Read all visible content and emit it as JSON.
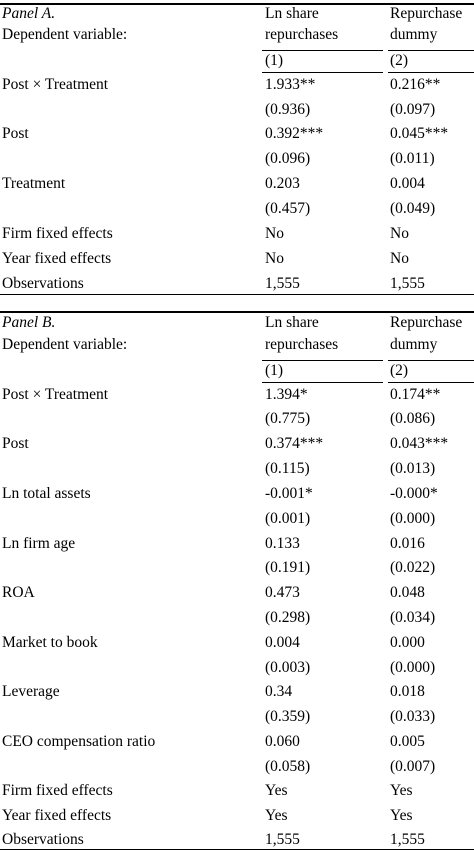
{
  "panelA": {
    "title": "Panel A.",
    "depvar": "Dependent variable:",
    "col1_line1": "Ln share",
    "col1_line2": "repurchases",
    "col2_line1": "Repurchase",
    "col2_line2": "dummy",
    "col1_num": "(1)",
    "col2_num": "(2)",
    "rows": [
      {
        "label": "Post × Treatment",
        "c1": "1.933**",
        "c2": "0.216**",
        "se1": "(0.936)",
        "se2": "(0.097)"
      },
      {
        "label": "Post",
        "c1": "0.392***",
        "c2": "0.045***",
        "se1": "(0.096)",
        "se2": "(0.011)"
      },
      {
        "label": "Treatment",
        "c1": "0.203",
        "c2": "0.004",
        "se1": "(0.457)",
        "se2": "(0.049)"
      }
    ],
    "firm_fe": {
      "label": "Firm fixed effects",
      "c1": "No",
      "c2": "No"
    },
    "year_fe": {
      "label": "Year fixed effects",
      "c1": "No",
      "c2": "No"
    },
    "obs": {
      "label": "Observations",
      "c1": "1,555",
      "c2": "1,555"
    }
  },
  "panelB": {
    "title": "Panel B.",
    "depvar": "Dependent variable:",
    "col1_line1": "Ln share",
    "col1_line2": "repurchases",
    "col2_line1": "Repurchase",
    "col2_line2": "dummy",
    "col1_num": "(1)",
    "col2_num": "(2)",
    "rows": [
      {
        "label": "Post × Treatment",
        "c1": "1.394*",
        "c2": "0.174**",
        "se1": "(0.775)",
        "se2": "(0.086)"
      },
      {
        "label": "Post",
        "c1": "0.374***",
        "c2": "0.043***",
        "se1": "(0.115)",
        "se2": "(0.013)"
      },
      {
        "label": "Ln total assets",
        "c1": "-0.001*",
        "c2": "-0.000*",
        "se1": "(0.001)",
        "se2": "(0.000)"
      },
      {
        "label": "Ln firm age",
        "c1": "0.133",
        "c2": "0.016",
        "se1": "(0.191)",
        "se2": "(0.022)"
      },
      {
        "label": "ROA",
        "c1": "0.473",
        "c2": "0.048",
        "se1": "(0.298)",
        "se2": "(0.034)"
      },
      {
        "label": "Market to book",
        "c1": "0.004",
        "c2": "0.000",
        "se1": "(0.003)",
        "se2": "(0.000)"
      },
      {
        "label": "Leverage",
        "c1": "0.34",
        "c2": "0.018",
        "se1": "(0.359)",
        "se2": "(0.033)"
      },
      {
        "label": "CEO compensation ratio",
        "c1": "0.060",
        "c2": "0.005",
        "se1": "(0.058)",
        "se2": "(0.007)"
      }
    ],
    "firm_fe": {
      "label": "Firm fixed effects",
      "c1": "Yes",
      "c2": "Yes"
    },
    "year_fe": {
      "label": "Year fixed effects",
      "c1": "Yes",
      "c2": "Yes"
    },
    "obs": {
      "label": "Observations",
      "c1": "1,555",
      "c2": "1,555"
    }
  }
}
